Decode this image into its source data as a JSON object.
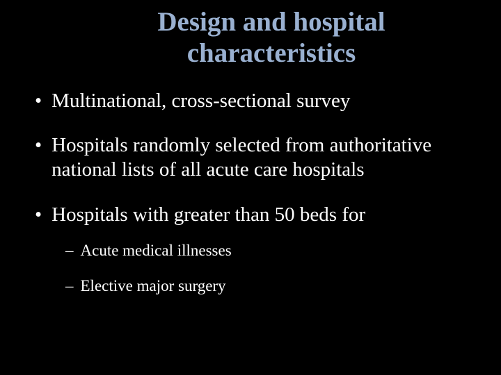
{
  "slide": {
    "title": "Design and hospital characteristics",
    "title_color": "#99b0d0",
    "title_fontsize": 39,
    "title_fontfamily": "Garamond, 'Times New Roman', serif",
    "background_color": "#000000",
    "text_color": "#ffffff",
    "bullets": [
      {
        "marker": "•",
        "text": "Multinational, cross-sectional survey"
      },
      {
        "marker": "•",
        "text": "Hospitals randomly selected from authoritative national lists of all acute care hospitals"
      },
      {
        "marker": "•",
        "text": "Hospitals with greater than 50 beds for",
        "subitems": [
          {
            "marker": "–",
            "text": "Acute medical illnesses"
          },
          {
            "marker": "–",
            "text": "Elective major surgery"
          }
        ]
      }
    ],
    "bullet_fontsize": 29,
    "bullet_fontfamily": "Garamond, 'Times New Roman', serif",
    "subbullet_fontsize": 23,
    "subbullet_fontfamily": "'Times New Roman', serif"
  }
}
